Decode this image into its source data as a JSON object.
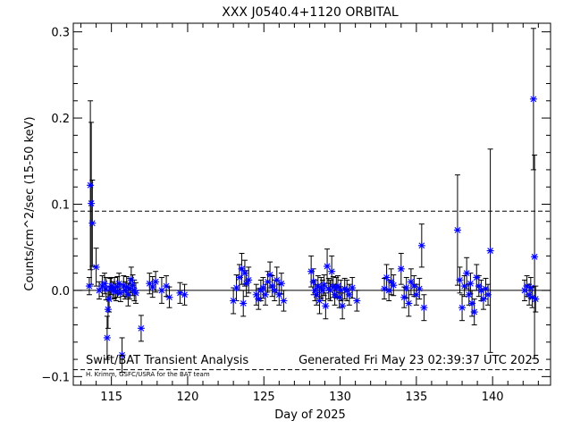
{
  "chart_data": {
    "type": "scatter",
    "title": "XXX J0540.4+1120 ORBITAL",
    "xlabel": "Day of 2025",
    "ylabel": "Counts/cm^2/sec (15-50 keV)",
    "xlim": [
      112.5,
      143.8
    ],
    "ylim": [
      -0.11,
      0.31
    ],
    "xticks": [
      115,
      120,
      125,
      130,
      135,
      140
    ],
    "xtick_labels": [
      "115",
      "120",
      "125",
      "130",
      "135",
      "140"
    ],
    "yticks": [
      -0.1,
      0.0,
      0.1,
      0.2,
      0.3
    ],
    "ytick_labels": [
      "−0.1",
      "0.0",
      "0.1",
      "0.2",
      "0.3"
    ],
    "grid": false,
    "marker_color": "#0000ff",
    "reference_lines": [
      {
        "y": 0.0,
        "style": "solid"
      },
      {
        "y": 0.092,
        "style": "dashed"
      },
      {
        "y": -0.092,
        "style": "dashed"
      }
    ],
    "footer_left": "Swift/BAT Transient Analysis",
    "footer_right": "Generated Fri May 23 02:39:37 UTC 2025",
    "credit": "H. Krimm, GSFC/USRA for the BAT team",
    "points": [
      {
        "x": 113.55,
        "y": 0.005,
        "err": 0.01
      },
      {
        "x": 113.62,
        "y": 0.122,
        "err": 0.098
      },
      {
        "x": 113.68,
        "y": 0.101,
        "err": 0.094
      },
      {
        "x": 113.75,
        "y": 0.078,
        "err": 0.05
      },
      {
        "x": 114.0,
        "y": 0.027,
        "err": 0.022
      },
      {
        "x": 114.2,
        "y": 0.0,
        "err": 0.01
      },
      {
        "x": 114.4,
        "y": 0.005,
        "err": 0.012
      },
      {
        "x": 114.55,
        "y": 0.008,
        "err": 0.012
      },
      {
        "x": 114.65,
        "y": 0.002,
        "err": 0.013
      },
      {
        "x": 114.72,
        "y": -0.055,
        "err": 0.025
      },
      {
        "x": 114.78,
        "y": -0.022,
        "err": 0.022
      },
      {
        "x": 114.85,
        "y": -0.01,
        "err": 0.015
      },
      {
        "x": 114.92,
        "y": 0.002,
        "err": 0.012
      },
      {
        "x": 115.0,
        "y": 0.005,
        "err": 0.01
      },
      {
        "x": 115.1,
        "y": 0.0,
        "err": 0.01
      },
      {
        "x": 115.2,
        "y": 0.003,
        "err": 0.012
      },
      {
        "x": 115.3,
        "y": -0.002,
        "err": 0.01
      },
      {
        "x": 115.4,
        "y": 0.004,
        "err": 0.012
      },
      {
        "x": 115.5,
        "y": 0.008,
        "err": 0.012
      },
      {
        "x": 115.6,
        "y": -0.003,
        "err": 0.01
      },
      {
        "x": 115.7,
        "y": -0.075,
        "err": 0.02
      },
      {
        "x": 115.8,
        "y": 0.005,
        "err": 0.012
      },
      {
        "x": 115.9,
        "y": 0.0,
        "err": 0.01
      },
      {
        "x": 116.0,
        "y": 0.004,
        "err": 0.012
      },
      {
        "x": 116.1,
        "y": -0.005,
        "err": 0.013
      },
      {
        "x": 116.2,
        "y": 0.002,
        "err": 0.012
      },
      {
        "x": 116.3,
        "y": 0.012,
        "err": 0.015
      },
      {
        "x": 116.4,
        "y": 0.006,
        "err": 0.012
      },
      {
        "x": 116.5,
        "y": 0.0,
        "err": 0.012
      },
      {
        "x": 116.6,
        "y": -0.003,
        "err": 0.012
      },
      {
        "x": 116.95,
        "y": -0.044,
        "err": 0.015
      },
      {
        "x": 117.5,
        "y": 0.008,
        "err": 0.012
      },
      {
        "x": 117.7,
        "y": 0.004,
        "err": 0.012
      },
      {
        "x": 117.9,
        "y": 0.01,
        "err": 0.012
      },
      {
        "x": 118.3,
        "y": 0.0,
        "err": 0.015
      },
      {
        "x": 118.6,
        "y": 0.005,
        "err": 0.012
      },
      {
        "x": 118.8,
        "y": -0.008,
        "err": 0.012
      },
      {
        "x": 119.5,
        "y": -0.003,
        "err": 0.012
      },
      {
        "x": 119.8,
        "y": -0.005,
        "err": 0.012
      },
      {
        "x": 123.0,
        "y": -0.012,
        "err": 0.015
      },
      {
        "x": 123.2,
        "y": 0.003,
        "err": 0.015
      },
      {
        "x": 123.4,
        "y": 0.015,
        "err": 0.015
      },
      {
        "x": 123.55,
        "y": 0.025,
        "err": 0.018
      },
      {
        "x": 123.65,
        "y": -0.015,
        "err": 0.015
      },
      {
        "x": 123.75,
        "y": 0.02,
        "err": 0.015
      },
      {
        "x": 123.85,
        "y": 0.008,
        "err": 0.015
      },
      {
        "x": 124.0,
        "y": 0.012,
        "err": 0.015
      },
      {
        "x": 124.5,
        "y": -0.005,
        "err": 0.012
      },
      {
        "x": 124.65,
        "y": -0.01,
        "err": 0.012
      },
      {
        "x": 124.8,
        "y": 0.0,
        "err": 0.012
      },
      {
        "x": 124.95,
        "y": 0.003,
        "err": 0.012
      },
      {
        "x": 125.1,
        "y": -0.005,
        "err": 0.012
      },
      {
        "x": 125.25,
        "y": 0.01,
        "err": 0.012
      },
      {
        "x": 125.4,
        "y": 0.018,
        "err": 0.015
      },
      {
        "x": 125.55,
        "y": 0.005,
        "err": 0.012
      },
      {
        "x": 125.7,
        "y": 0.0,
        "err": 0.012
      },
      {
        "x": 125.85,
        "y": 0.012,
        "err": 0.015
      },
      {
        "x": 126.0,
        "y": -0.005,
        "err": 0.012
      },
      {
        "x": 126.15,
        "y": 0.008,
        "err": 0.012
      },
      {
        "x": 126.3,
        "y": -0.012,
        "err": 0.012
      },
      {
        "x": 128.1,
        "y": 0.022,
        "err": 0.018
      },
      {
        "x": 128.25,
        "y": 0.01,
        "err": 0.015
      },
      {
        "x": 128.35,
        "y": 0.0,
        "err": 0.012
      },
      {
        "x": 128.45,
        "y": -0.005,
        "err": 0.012
      },
      {
        "x": 128.55,
        "y": 0.005,
        "err": 0.012
      },
      {
        "x": 128.65,
        "y": -0.012,
        "err": 0.015
      },
      {
        "x": 128.75,
        "y": 0.003,
        "err": 0.012
      },
      {
        "x": 128.85,
        "y": 0.0,
        "err": 0.012
      },
      {
        "x": 128.95,
        "y": 0.006,
        "err": 0.012
      },
      {
        "x": 129.05,
        "y": -0.018,
        "err": 0.015
      },
      {
        "x": 129.15,
        "y": 0.028,
        "err": 0.02
      },
      {
        "x": 129.25,
        "y": 0.002,
        "err": 0.012
      },
      {
        "x": 129.35,
        "y": 0.0,
        "err": 0.012
      },
      {
        "x": 129.45,
        "y": 0.022,
        "err": 0.018
      },
      {
        "x": 129.55,
        "y": 0.004,
        "err": 0.012
      },
      {
        "x": 129.65,
        "y": -0.005,
        "err": 0.012
      },
      {
        "x": 129.75,
        "y": 0.003,
        "err": 0.012
      },
      {
        "x": 129.85,
        "y": 0.005,
        "err": 0.012
      },
      {
        "x": 129.95,
        "y": -0.008,
        "err": 0.012
      },
      {
        "x": 130.05,
        "y": 0.0,
        "err": 0.012
      },
      {
        "x": 130.15,
        "y": -0.018,
        "err": 0.015
      },
      {
        "x": 130.3,
        "y": 0.002,
        "err": 0.012
      },
      {
        "x": 130.45,
        "y": 0.0,
        "err": 0.012
      },
      {
        "x": 130.6,
        "y": -0.005,
        "err": 0.012
      },
      {
        "x": 130.8,
        "y": 0.003,
        "err": 0.012
      },
      {
        "x": 131.1,
        "y": -0.012,
        "err": 0.012
      },
      {
        "x": 132.9,
        "y": 0.002,
        "err": 0.012
      },
      {
        "x": 133.05,
        "y": 0.015,
        "err": 0.015
      },
      {
        "x": 133.2,
        "y": 0.0,
        "err": 0.012
      },
      {
        "x": 133.35,
        "y": 0.01,
        "err": 0.015
      },
      {
        "x": 133.5,
        "y": 0.006,
        "err": 0.012
      },
      {
        "x": 134.0,
        "y": 0.025,
        "err": 0.018
      },
      {
        "x": 134.2,
        "y": -0.008,
        "err": 0.012
      },
      {
        "x": 134.35,
        "y": 0.003,
        "err": 0.012
      },
      {
        "x": 134.5,
        "y": -0.015,
        "err": 0.015
      },
      {
        "x": 134.65,
        "y": 0.01,
        "err": 0.015
      },
      {
        "x": 134.85,
        "y": 0.005,
        "err": 0.012
      },
      {
        "x": 135.0,
        "y": -0.005,
        "err": 0.012
      },
      {
        "x": 135.2,
        "y": 0.002,
        "err": 0.012
      },
      {
        "x": 135.35,
        "y": 0.052,
        "err": 0.025
      },
      {
        "x": 135.5,
        "y": -0.02,
        "err": 0.015
      },
      {
        "x": 137.7,
        "y": 0.07,
        "err": 0.064
      },
      {
        "x": 137.85,
        "y": 0.012,
        "err": 0.015
      },
      {
        "x": 138.0,
        "y": -0.02,
        "err": 0.015
      },
      {
        "x": 138.15,
        "y": 0.005,
        "err": 0.012
      },
      {
        "x": 138.3,
        "y": 0.02,
        "err": 0.018
      },
      {
        "x": 138.45,
        "y": -0.005,
        "err": 0.012
      },
      {
        "x": 138.55,
        "y": 0.008,
        "err": 0.012
      },
      {
        "x": 138.65,
        "y": -0.015,
        "err": 0.015
      },
      {
        "x": 138.8,
        "y": -0.025,
        "err": 0.015
      },
      {
        "x": 138.95,
        "y": 0.015,
        "err": 0.015
      },
      {
        "x": 139.1,
        "y": 0.005,
        "err": 0.012
      },
      {
        "x": 139.25,
        "y": 0.0,
        "err": 0.012
      },
      {
        "x": 139.4,
        "y": -0.01,
        "err": 0.012
      },
      {
        "x": 139.55,
        "y": 0.002,
        "err": 0.012
      },
      {
        "x": 139.7,
        "y": -0.005,
        "err": 0.012
      },
      {
        "x": 139.85,
        "y": 0.046,
        "err": 0.118
      },
      {
        "x": 142.1,
        "y": 0.0,
        "err": 0.012
      },
      {
        "x": 142.25,
        "y": 0.005,
        "err": 0.012
      },
      {
        "x": 142.4,
        "y": -0.005,
        "err": 0.012
      },
      {
        "x": 142.5,
        "y": 0.003,
        "err": 0.012
      },
      {
        "x": 142.6,
        "y": -0.008,
        "err": 0.012
      },
      {
        "x": 142.68,
        "y": 0.222,
        "err": 0.082
      },
      {
        "x": 142.75,
        "y": 0.039,
        "err": 0.118
      },
      {
        "x": 142.82,
        "y": -0.01,
        "err": 0.015
      }
    ]
  }
}
